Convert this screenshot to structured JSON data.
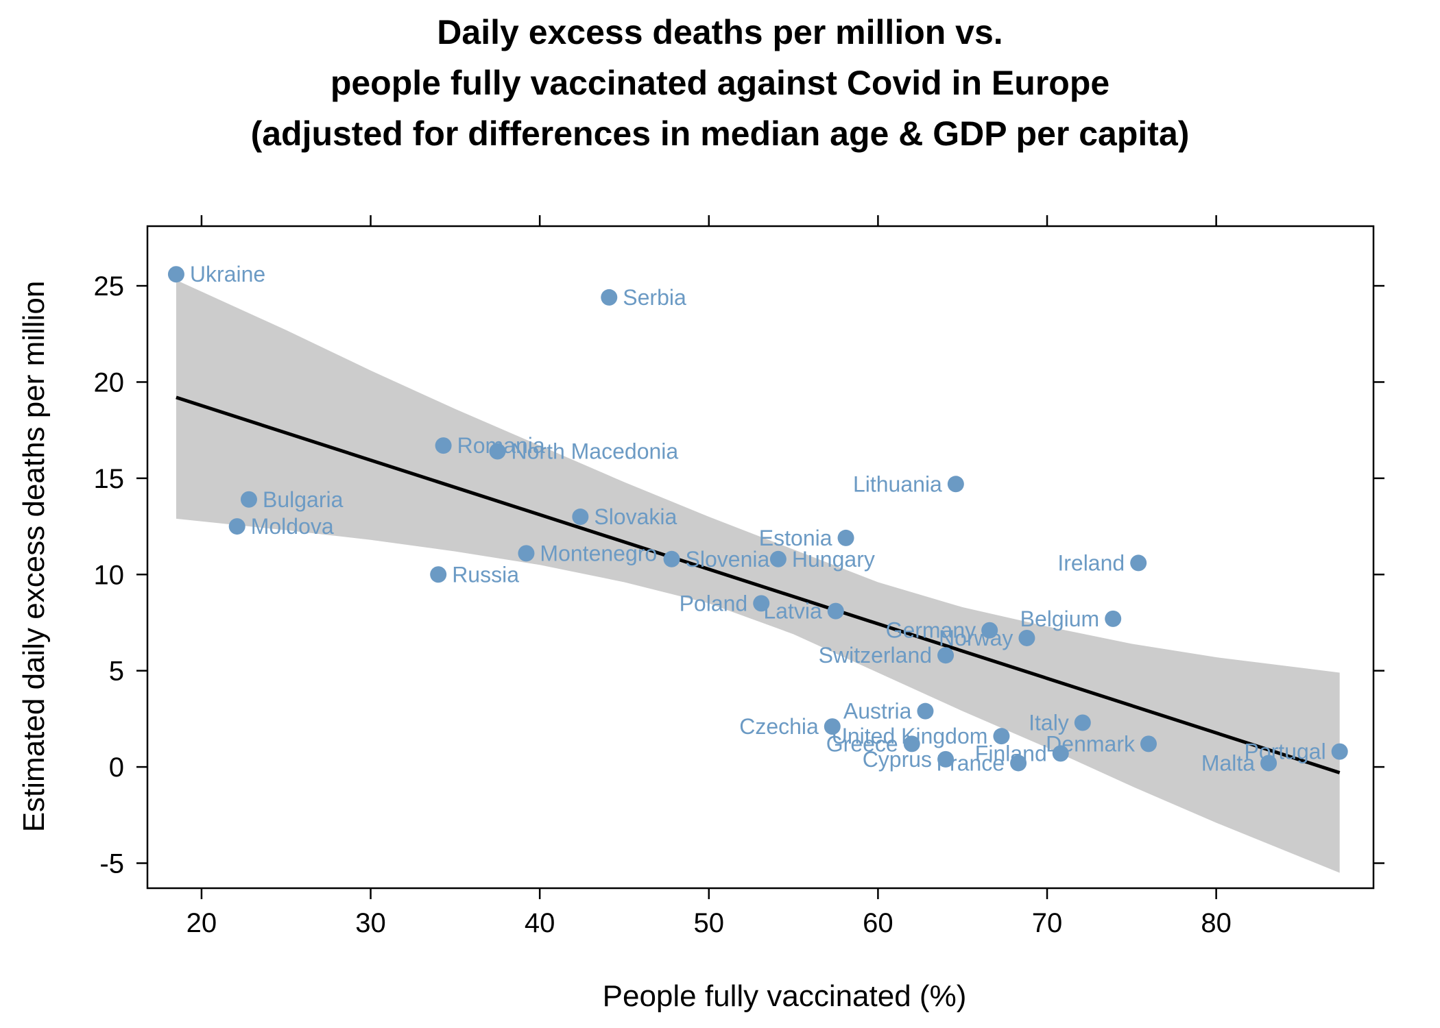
{
  "chart_data": {
    "type": "scatter",
    "title": [
      "Daily excess deaths per million vs.",
      "people fully vaccinated against Covid in Europe",
      "(adjusted for differences in median age & GDP per capita)"
    ],
    "xlabel": "People fully vaccinated (%)",
    "ylabel": "Estimated daily excess deaths per million",
    "xlim": [
      16.8,
      89.3
    ],
    "ylim": [
      -6.3,
      28.1
    ],
    "xticks": [
      20,
      30,
      40,
      50,
      60,
      70,
      80
    ],
    "yticks": [
      -5,
      0,
      5,
      10,
      15,
      20,
      25
    ],
    "xtick_labels": [
      "20",
      "30",
      "40",
      "50",
      "60",
      "70",
      "80"
    ],
    "ytick_labels": [
      "-5",
      "0",
      "5",
      "10",
      "15",
      "20",
      "25"
    ],
    "grid": false,
    "point_color": "#6b9ac4",
    "band_color": "#cccccc",
    "line_color": "#000000",
    "points": [
      {
        "name": "Ukraine",
        "x": 18.5,
        "y": 25.6,
        "label_side": "right"
      },
      {
        "name": "Serbia",
        "x": 44.1,
        "y": 24.4,
        "label_side": "right"
      },
      {
        "name": "Romania",
        "x": 34.3,
        "y": 16.7,
        "label_side": "right"
      },
      {
        "name": "North Macedonia",
        "x": 37.5,
        "y": 16.4,
        "label_side": "right"
      },
      {
        "name": "Bulgaria",
        "x": 22.8,
        "y": 13.9,
        "label_side": "right"
      },
      {
        "name": "Moldova",
        "x": 22.1,
        "y": 12.5,
        "label_side": "right"
      },
      {
        "name": "Slovakia",
        "x": 42.4,
        "y": 13.0,
        "label_side": "right"
      },
      {
        "name": "Montenegro",
        "x": 39.2,
        "y": 11.1,
        "label_side": "right"
      },
      {
        "name": "Russia",
        "x": 34.0,
        "y": 10.0,
        "label_side": "right"
      },
      {
        "name": "Slovenia",
        "x": 47.8,
        "y": 10.8,
        "label_side": "right"
      },
      {
        "name": "Hungary",
        "x": 54.1,
        "y": 10.8,
        "label_side": "right"
      },
      {
        "name": "Estonia",
        "x": 58.1,
        "y": 11.9,
        "label_side": "left"
      },
      {
        "name": "Lithuania",
        "x": 64.6,
        "y": 14.7,
        "label_side": "left"
      },
      {
        "name": "Ireland",
        "x": 75.4,
        "y": 10.6,
        "label_side": "left"
      },
      {
        "name": "Latvia",
        "x": 57.5,
        "y": 8.1,
        "label_side": "left"
      },
      {
        "name": "Poland",
        "x": 53.1,
        "y": 8.5,
        "label_side": "left"
      },
      {
        "name": "Belgium",
        "x": 73.9,
        "y": 7.7,
        "label_side": "left"
      },
      {
        "name": "Germany",
        "x": 66.6,
        "y": 7.1,
        "label_side": "left"
      },
      {
        "name": "Norway",
        "x": 68.8,
        "y": 6.7,
        "label_side": "left"
      },
      {
        "name": "Switzerland",
        "x": 64.0,
        "y": 5.8,
        "label_side": "left"
      },
      {
        "name": "Austria",
        "x": 62.8,
        "y": 2.9,
        "label_side": "left"
      },
      {
        "name": "Italy",
        "x": 72.1,
        "y": 2.3,
        "label_side": "left"
      },
      {
        "name": "Czechia",
        "x": 57.3,
        "y": 2.1,
        "label_side": "left"
      },
      {
        "name": "United Kingdom",
        "x": 67.3,
        "y": 1.6,
        "label_side": "left"
      },
      {
        "name": "Greece",
        "x": 62.0,
        "y": 1.2,
        "label_side": "left"
      },
      {
        "name": "Denmark",
        "x": 76.0,
        "y": 1.2,
        "label_side": "left"
      },
      {
        "name": "Finland",
        "x": 70.8,
        "y": 0.7,
        "label_side": "left"
      },
      {
        "name": "Cyprus",
        "x": 64.0,
        "y": 0.4,
        "label_side": "left"
      },
      {
        "name": "France",
        "x": 68.3,
        "y": 0.2,
        "label_side": "left"
      },
      {
        "name": "Portugal",
        "x": 87.3,
        "y": 0.8,
        "label_side": "left"
      },
      {
        "name": "Malta",
        "x": 83.1,
        "y": 0.2,
        "label_side": "left"
      }
    ],
    "regression_line": {
      "x": [
        18.5,
        87.3
      ],
      "y": [
        19.2,
        -0.3
      ]
    },
    "confidence_band": {
      "x": [
        18.5,
        25,
        30,
        35,
        40,
        45,
        50,
        55,
        60,
        65,
        70,
        75,
        80,
        87.3
      ],
      "upper": [
        25.3,
        22.7,
        20.6,
        18.6,
        16.7,
        14.8,
        13.0,
        11.3,
        9.6,
        8.3,
        7.3,
        6.4,
        5.7,
        4.9
      ],
      "lower": [
        12.9,
        12.3,
        11.8,
        11.2,
        10.5,
        9.6,
        8.5,
        6.9,
        4.9,
        2.9,
        1.0,
        -1.0,
        -2.9,
        -5.5
      ]
    }
  }
}
